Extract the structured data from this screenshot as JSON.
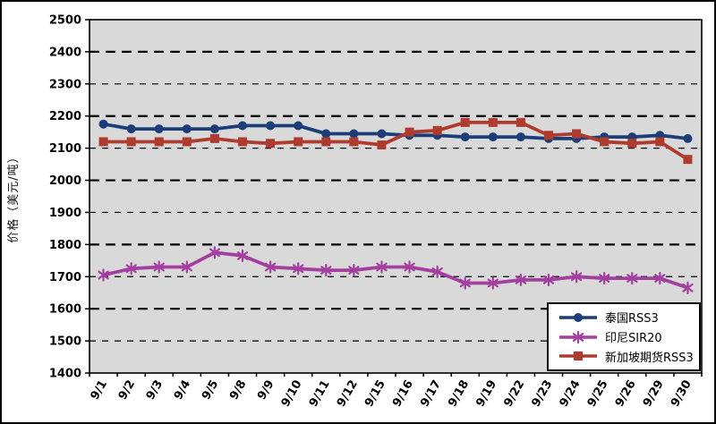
{
  "chart_data": {
    "type": "line",
    "title": "",
    "xlabel": "",
    "ylabel": "价格（美元/吨）",
    "ylim": [
      1400,
      2500
    ],
    "ytick_step": 100,
    "grid": "horizontal-dashed",
    "plot_bg": "#D9D9D9",
    "axis_color": "#000000",
    "legend_position": "bottom-right",
    "categories": [
      "9/1",
      "9/2",
      "9/3",
      "9/4",
      "9/5",
      "9/8",
      "9/9",
      "9/10",
      "9/11",
      "9/12",
      "9/15",
      "9/16",
      "9/17",
      "9/18",
      "9/19",
      "9/22",
      "9/23",
      "9/24",
      "9/25",
      "9/26",
      "9/29",
      "9/30"
    ],
    "series": [
      {
        "name": "泰国RSS3",
        "color": "#1C3D77",
        "marker": "circle",
        "values": [
          2175,
          2160,
          2160,
          2160,
          2160,
          2170,
          2170,
          2170,
          2145,
          2145,
          2145,
          2140,
          2140,
          2135,
          2135,
          2135,
          2130,
          2130,
          2135,
          2135,
          2140,
          2130
        ]
      },
      {
        "name": "印尼SIR20",
        "color": "#A23F9F",
        "marker": "star",
        "values": [
          1705,
          1725,
          1730,
          1730,
          1775,
          1765,
          1730,
          1725,
          1720,
          1720,
          1730,
          1730,
          1715,
          1680,
          1680,
          1690,
          1690,
          1700,
          1695,
          1695,
          1695,
          1665
        ]
      },
      {
        "name": "新加坡期货RSS3",
        "color": "#AF3B2E",
        "marker": "square",
        "values": [
          2120,
          2120,
          2120,
          2120,
          2130,
          2120,
          2115,
          2120,
          2120,
          2120,
          2110,
          2150,
          2155,
          2180,
          2180,
          2180,
          2140,
          2145,
          2120,
          2115,
          2120,
          2065
        ]
      }
    ]
  }
}
